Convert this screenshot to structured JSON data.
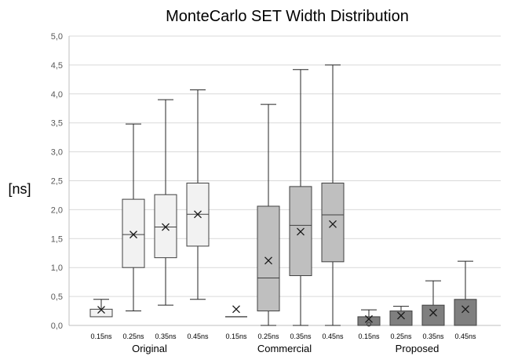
{
  "chart_data": {
    "type": "box",
    "title": "MonteCarlo SET Width Distribution",
    "ylabel": "[ns]",
    "ylim": [
      0,
      5
    ],
    "ytick_step": 0.5,
    "ytick_labels": [
      "0,0",
      "0,5",
      "1,0",
      "1,5",
      "2,0",
      "2,5",
      "3,0",
      "3,5",
      "4,0",
      "4,5",
      "5,0"
    ],
    "grid": true,
    "groups": [
      {
        "name": "Original",
        "fill": "#f2f2f2",
        "boxes": [
          {
            "label": "0.15ns",
            "min": 0.15,
            "q1": 0.15,
            "median": 0.15,
            "q3": 0.28,
            "max": 0.45,
            "mean": 0.27,
            "outliers": []
          },
          {
            "label": "0.25ns",
            "min": 0.25,
            "q1": 1.0,
            "median": 1.57,
            "q3": 2.18,
            "max": 3.48,
            "mean": 1.57,
            "outliers": []
          },
          {
            "label": "0.35ns",
            "min": 0.35,
            "q1": 1.17,
            "median": 1.7,
            "q3": 2.26,
            "max": 3.9,
            "mean": 1.7,
            "outliers": []
          },
          {
            "label": "0.45ns",
            "min": 0.45,
            "q1": 1.37,
            "median": 1.92,
            "q3": 2.46,
            "max": 4.07,
            "mean": 1.92,
            "outliers": []
          }
        ]
      },
      {
        "name": "Commercial",
        "fill": "#bfbfbf",
        "boxes": [
          {
            "label": "0.15ns",
            "min": 0.15,
            "q1": 0.15,
            "median": 0.15,
            "q3": 0.15,
            "max": 0.15,
            "mean": 0.28,
            "outliers": []
          },
          {
            "label": "0.25ns",
            "min": 0.0,
            "q1": 0.25,
            "median": 0.82,
            "q3": 2.06,
            "max": 3.82,
            "mean": 1.12,
            "outliers": []
          },
          {
            "label": "0.35ns",
            "min": 0.0,
            "q1": 0.86,
            "median": 1.73,
            "q3": 2.4,
            "max": 4.42,
            "mean": 1.62,
            "outliers": []
          },
          {
            "label": "0.45ns",
            "min": 0.0,
            "q1": 1.1,
            "median": 1.91,
            "q3": 2.46,
            "max": 4.5,
            "mean": 1.75,
            "outliers": []
          }
        ]
      },
      {
        "name": "Proposed",
        "fill": "#7f7f7f",
        "boxes": [
          {
            "label": "0.15ns",
            "min": 0.0,
            "q1": 0.0,
            "median": 0.15,
            "q3": 0.15,
            "max": 0.27,
            "mean": 0.11,
            "outliers": [
              0.02
            ]
          },
          {
            "label": "0.25ns",
            "min": 0.0,
            "q1": 0.0,
            "median": 0.25,
            "q3": 0.25,
            "max": 0.33,
            "mean": 0.17,
            "outliers": []
          },
          {
            "label": "0.35ns",
            "min": 0.0,
            "q1": 0.0,
            "median": 0.35,
            "q3": 0.35,
            "max": 0.77,
            "mean": 0.22,
            "outliers": []
          },
          {
            "label": "0.45ns",
            "min": 0.0,
            "q1": 0.0,
            "median": 0.45,
            "q3": 0.45,
            "max": 1.11,
            "mean": 0.28,
            "outliers": []
          }
        ]
      }
    ]
  },
  "colors": {
    "box_stroke": "#404040",
    "whisker": "#262626",
    "grid": "#d9d9d9",
    "axis": "#bfbfbf",
    "tick_text": "#595959"
  }
}
